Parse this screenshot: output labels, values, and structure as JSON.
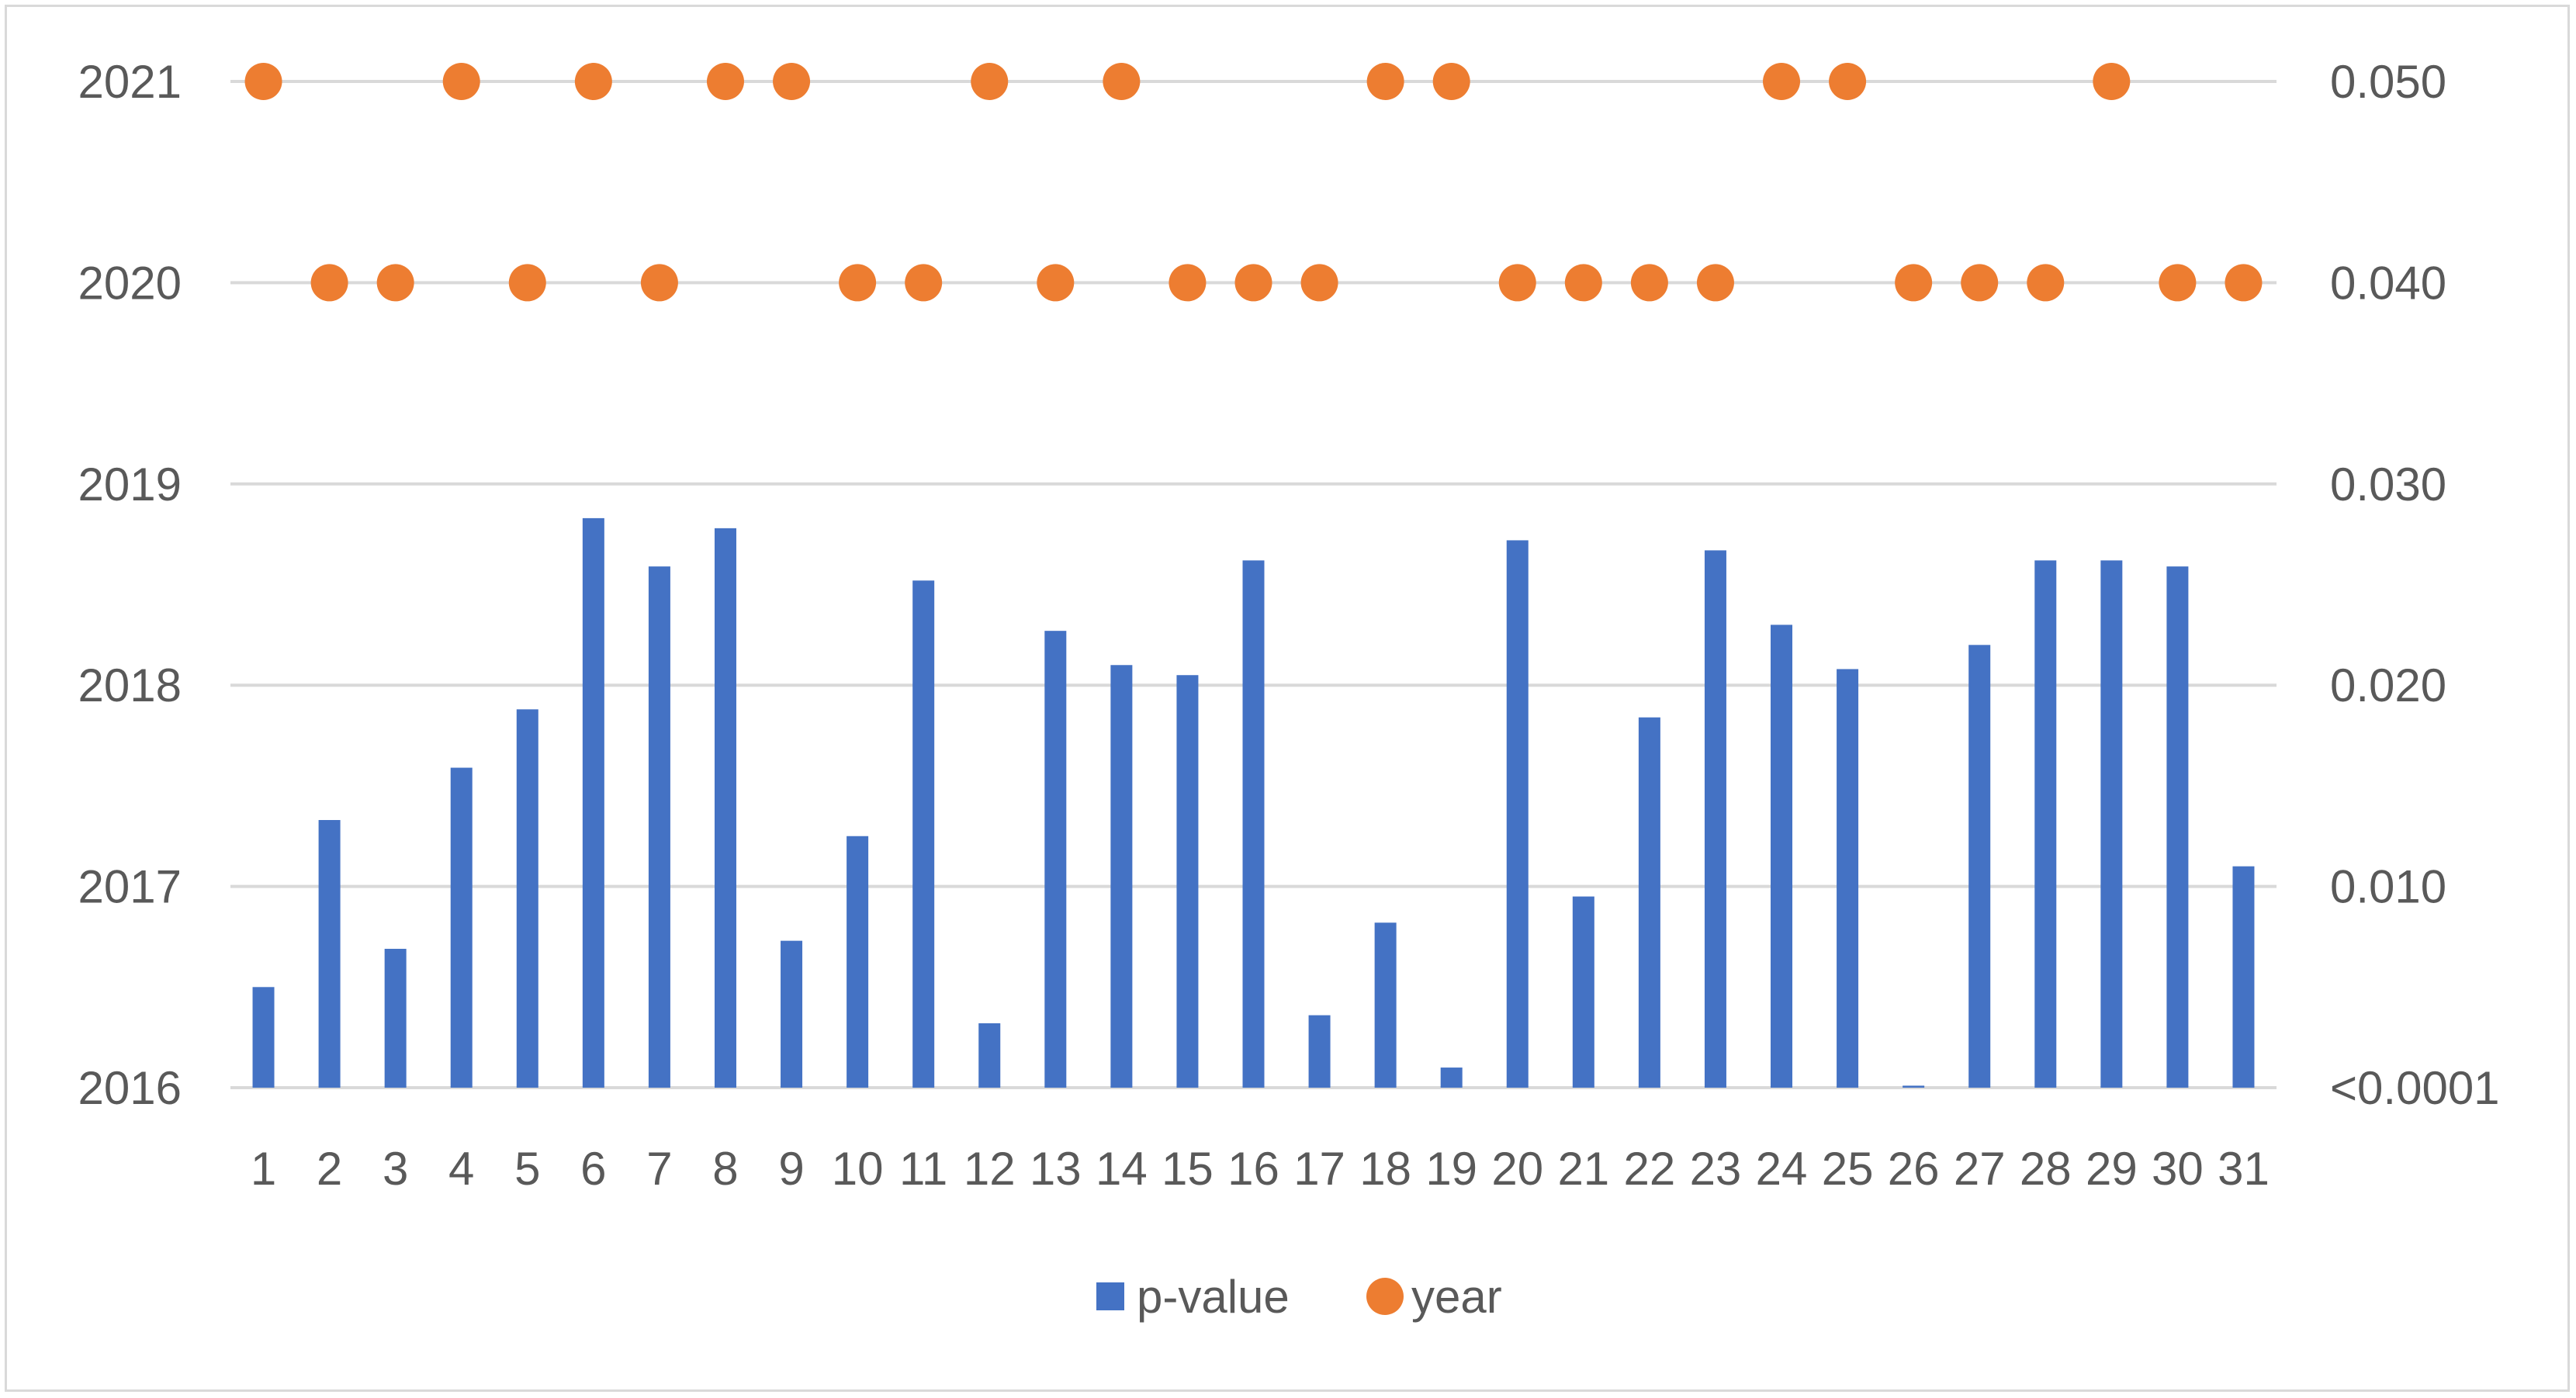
{
  "chart_data": {
    "type": "bar",
    "title": "",
    "xlabel": "",
    "ylabel": "",
    "categories": [
      "1",
      "2",
      "3",
      "4",
      "5",
      "6",
      "7",
      "8",
      "9",
      "10",
      "11",
      "12",
      "13",
      "14",
      "15",
      "16",
      "17",
      "18",
      "19",
      "20",
      "21",
      "22",
      "23",
      "24",
      "25",
      "26",
      "27",
      "28",
      "29",
      "30",
      "31"
    ],
    "series": [
      {
        "name": "p-value",
        "type": "bar",
        "axis": "right",
        "color": "#4472C4",
        "values": [
          0.005,
          0.0133,
          0.0069,
          0.0159,
          0.0188,
          0.0283,
          0.0259,
          0.0278,
          0.0073,
          0.0125,
          0.0252,
          0.0032,
          0.0227,
          0.021,
          0.0205,
          0.0262,
          0.0036,
          0.0082,
          0.001,
          0.0272,
          0.0095,
          0.0184,
          0.0267,
          0.023,
          0.0208,
          0.0001,
          0.022,
          0.0262,
          0.0262,
          0.0259,
          0.011
        ]
      },
      {
        "name": "year",
        "type": "scatter",
        "axis": "left",
        "color": "#ED7D31",
        "values": [
          2021,
          2020,
          2020,
          2021,
          2020,
          2021,
          2020,
          2021,
          2021,
          2020,
          2020,
          2021,
          2020,
          2021,
          2020,
          2020,
          2020,
          2021,
          2021,
          2020,
          2020,
          2020,
          2020,
          2021,
          2021,
          2020,
          2020,
          2020,
          2021,
          2020,
          2020
        ]
      }
    ],
    "left_axis": {
      "min": 2016,
      "max": 2021,
      "tick_labels": [
        "2016",
        "2017",
        "2018",
        "2019",
        "2020",
        "2021"
      ]
    },
    "right_axis": {
      "min": 0,
      "max": 0.05,
      "tick_labels": [
        "<0.0001",
        "0.010",
        "0.020",
        "0.030",
        "0.040",
        "0.050"
      ]
    },
    "grid": true,
    "legend_position": "bottom",
    "legend": [
      {
        "label": "p-value",
        "marker": "square",
        "color": "#4472C4"
      },
      {
        "label": "year",
        "marker": "circle",
        "color": "#ED7D31"
      }
    ],
    "gridline_color": "#d9d9d9"
  }
}
